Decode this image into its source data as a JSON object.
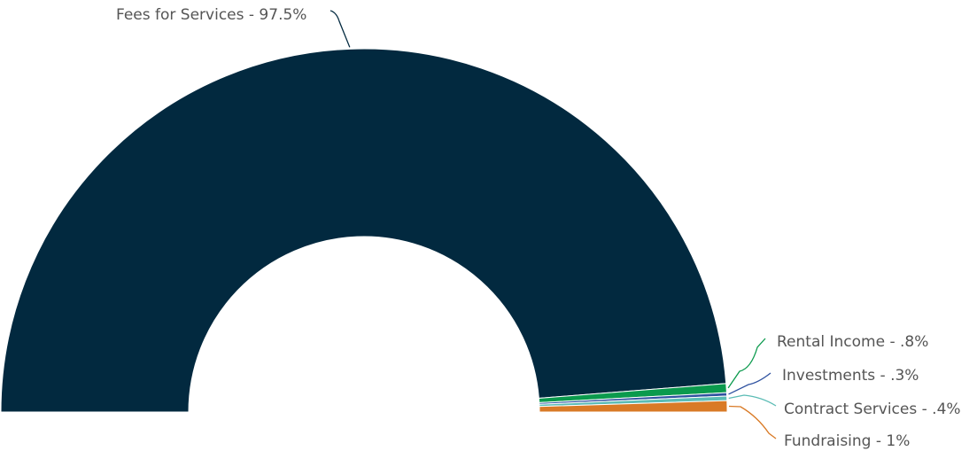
{
  "chart_data": {
    "type": "pie",
    "variant": "semi-donut",
    "unit": "%",
    "slices": [
      {
        "name": "Fees for Services",
        "label": "Fees for Services - 97.5%",
        "value": 97.5,
        "color": "#02293f"
      },
      {
        "name": "Rental Income",
        "label": "Rental Income - .8%",
        "value": 0.8,
        "color": "#0b9a4d"
      },
      {
        "name": "Investments",
        "label": "Investments - .3%",
        "value": 0.3,
        "color": "#2f52a0"
      },
      {
        "name": "Contract Services",
        "label": "Contract Services - .4%",
        "value": 0.4,
        "color": "#5bbcb5"
      },
      {
        "name": "Fundraising",
        "label": "Fundraising - 1%",
        "value": 1.0,
        "color": "#d97a26"
      }
    ]
  }
}
